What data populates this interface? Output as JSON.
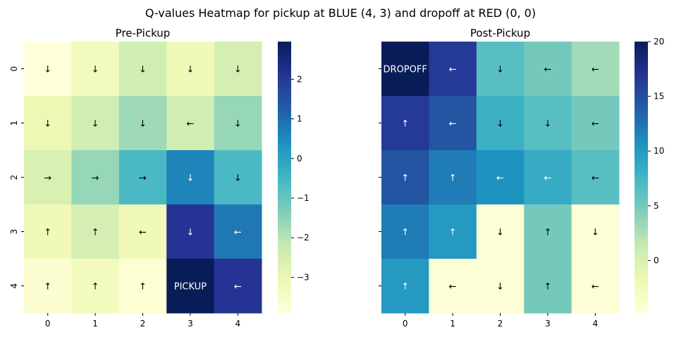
{
  "suptitle": "Q-values Heatmap for pickup at BLUE (4, 3) and dropoff at RED (0, 0)",
  "chart_data": [
    {
      "type": "heatmap",
      "title": "Pre-Pickup",
      "x_ticks": [
        "0",
        "1",
        "2",
        "3",
        "4"
      ],
      "y_ticks": [
        "0",
        "1",
        "2",
        "3",
        "4"
      ],
      "colormap": "YlGnBu",
      "colorbar": {
        "range": [
          -3.9,
          2.95
        ],
        "ticks": [
          -3,
          -2,
          -1,
          0,
          1,
          2
        ],
        "tick_labels": [
          "−3",
          "−2",
          "−1",
          "0",
          "1",
          "2"
        ]
      },
      "values": [
        [
          -3.9,
          -3.3,
          -2.4,
          -3.2,
          -2.5
        ],
        [
          -3.1,
          -2.4,
          -1.7,
          -2.4,
          -1.6
        ],
        [
          -2.6,
          -1.6,
          -0.6,
          0.6,
          -0.6
        ],
        [
          -3.2,
          -2.5,
          -3.2,
          2.1,
          0.8
        ],
        [
          -3.7,
          -3.3,
          -3.8,
          2.95,
          2.1
        ]
      ],
      "annotations": [
        [
          "↓",
          "↓",
          "↓",
          "↓",
          "↓"
        ],
        [
          "↓",
          "↓",
          "↓",
          "←",
          "↓"
        ],
        [
          "→",
          "→",
          "→",
          "↓",
          "↓"
        ],
        [
          "↑",
          "↑",
          "←",
          "↓",
          "←"
        ],
        [
          "↑",
          "↑",
          "↑",
          "PICKUP",
          "←"
        ]
      ]
    },
    {
      "type": "heatmap",
      "title": "Post-Pickup",
      "x_ticks": [
        "0",
        "1",
        "2",
        "3",
        "4"
      ],
      "y_ticks": [
        "0",
        "1",
        "2",
        "3",
        "4"
      ],
      "colormap": "YlGnBu",
      "colorbar": {
        "range": [
          -4.8,
          20
        ],
        "ticks": [
          0,
          5,
          10,
          15,
          20
        ],
        "tick_labels": [
          "0",
          "5",
          "10",
          "15",
          "20"
        ]
      },
      "values": [
        [
          20,
          16.5,
          6.5,
          5,
          3
        ],
        [
          16.5,
          14.5,
          8,
          6.5,
          5
        ],
        [
          14.5,
          12,
          10.5,
          8.5,
          6.5
        ],
        [
          12,
          10,
          -4.5,
          5,
          -4.5
        ],
        [
          10,
          -4.5,
          -4.5,
          5,
          -4.5
        ]
      ],
      "annotations": [
        [
          "DROPOFF",
          "←",
          "↓",
          "←",
          "←"
        ],
        [
          "↑",
          "←",
          "↓",
          "↓",
          "←"
        ],
        [
          "↑",
          "↑",
          "←",
          "←",
          "←"
        ],
        [
          "↑",
          "↑",
          "↓",
          "↑",
          "↓"
        ],
        [
          "↑",
          "←",
          "↓",
          "↑",
          "←"
        ]
      ]
    }
  ]
}
